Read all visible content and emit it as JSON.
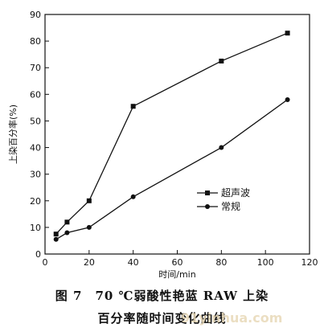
{
  "chart_data": {
    "type": "line",
    "x": [
      5,
      10,
      20,
      40,
      80,
      110
    ],
    "series": [
      {
        "name": "超声波",
        "marker": "square",
        "values": [
          7.5,
          12,
          20,
          55.5,
          72.5,
          83
        ]
      },
      {
        "name": "常规",
        "marker": "circle",
        "values": [
          5.5,
          8,
          10,
          21.5,
          40,
          58
        ]
      }
    ],
    "title": "",
    "xlabel": "时间/min",
    "ylabel": "上染百分率(%)",
    "xlim": [
      0,
      120
    ],
    "ylim": [
      0,
      90
    ],
    "xticks": [
      0,
      20,
      40,
      60,
      80,
      100,
      120
    ],
    "yticks": [
      0,
      10,
      20,
      30,
      40,
      50,
      60,
      70,
      80,
      90
    ],
    "grid": false,
    "legend_position": "center-right",
    "line_color": "#111111"
  },
  "caption": {
    "line1": "图 7　70 ℃弱酸性艳蓝 RAW 上染",
    "line2": "百分率随时间变化曲线"
  },
  "watermark": "91yinhua.com"
}
